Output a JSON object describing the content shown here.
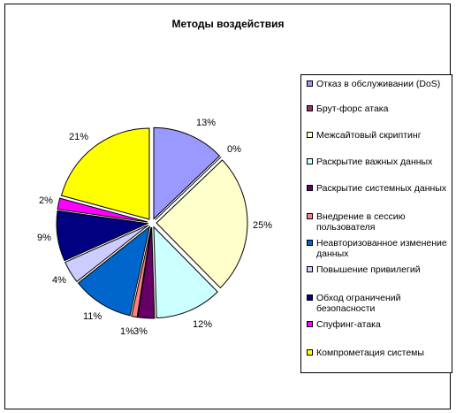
{
  "chart_data": {
    "type": "pie",
    "title": "Методы воздействия",
    "legend_position": "right",
    "slices": [
      {
        "label": "Отказ в обслуживании (DoS)",
        "value": 13,
        "value_label": "13%",
        "color": "#9999ff"
      },
      {
        "label": "Брут-форс атака",
        "value": 0,
        "value_label": "0%",
        "color": "#993366"
      },
      {
        "label": "Межсайтовый скриптинг",
        "value": 25,
        "value_label": "25%",
        "color": "#ffffcc"
      },
      {
        "label": "Раскрытие важных данных",
        "value": 12,
        "value_label": "12%",
        "color": "#ccffff"
      },
      {
        "label": "Раскрытие системных данных",
        "value": 3,
        "value_label": "3%",
        "color": "#660066"
      },
      {
        "label": "Внедрение в сессию пользователя",
        "value": 1,
        "value_label": "1%",
        "color": "#ff8080"
      },
      {
        "label": "Неавторизованное изменение данных",
        "value": 11,
        "value_label": "11%",
        "color": "#0066cc"
      },
      {
        "label": "Повышение привилегий",
        "value": 4,
        "value_label": "4%",
        "color": "#ccccff"
      },
      {
        "label": "Обход ограничений безопасности",
        "value": 9,
        "value_label": "9%",
        "color": "#000080"
      },
      {
        "label": "Спуфинг-атака",
        "value": 2,
        "value_label": "2%",
        "color": "#ff00ff"
      },
      {
        "label": "Компрометация системы",
        "value": 21,
        "value_label": "21%",
        "color": "#ffff00"
      }
    ]
  }
}
